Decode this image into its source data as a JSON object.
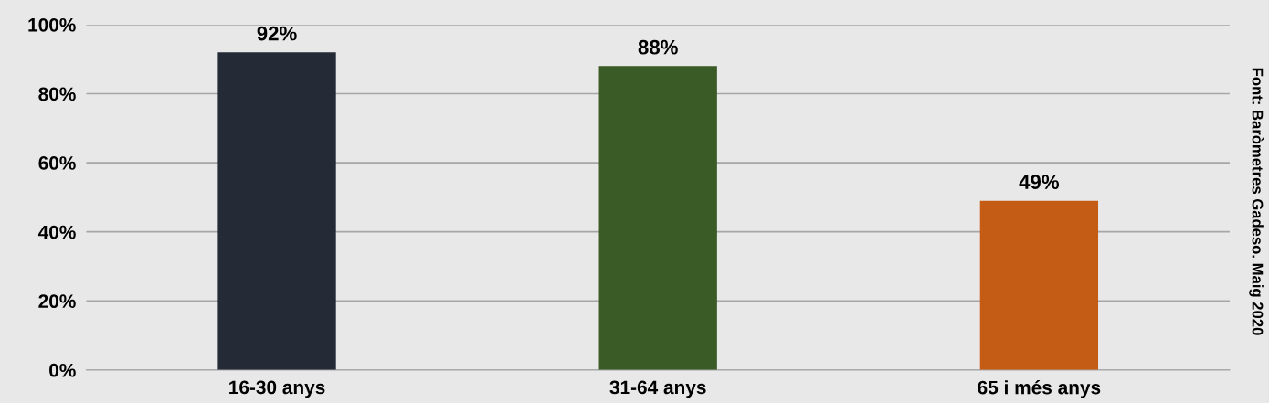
{
  "chart_data": {
    "type": "bar",
    "categories": [
      "16-30 anys",
      "31-64 anys",
      "65 i més anys"
    ],
    "values": [
      92,
      88,
      49
    ],
    "value_labels": [
      "92%",
      "88%",
      "49%"
    ],
    "colors": [
      "#242a36",
      "#3a5a26",
      "#c55c15"
    ],
    "ylim": [
      0,
      100
    ],
    "yticks": [
      {
        "value": 0,
        "label": "0%"
      },
      {
        "value": 20,
        "label": "20%"
      },
      {
        "value": 40,
        "label": "40%"
      },
      {
        "value": 60,
        "label": "60%"
      },
      {
        "value": 80,
        "label": "80%"
      },
      {
        "value": 100,
        "label": "100%"
      }
    ],
    "grid": "y",
    "annotations": [
      "Font: Baròmetres Gadeso. Maig 2020"
    ]
  }
}
